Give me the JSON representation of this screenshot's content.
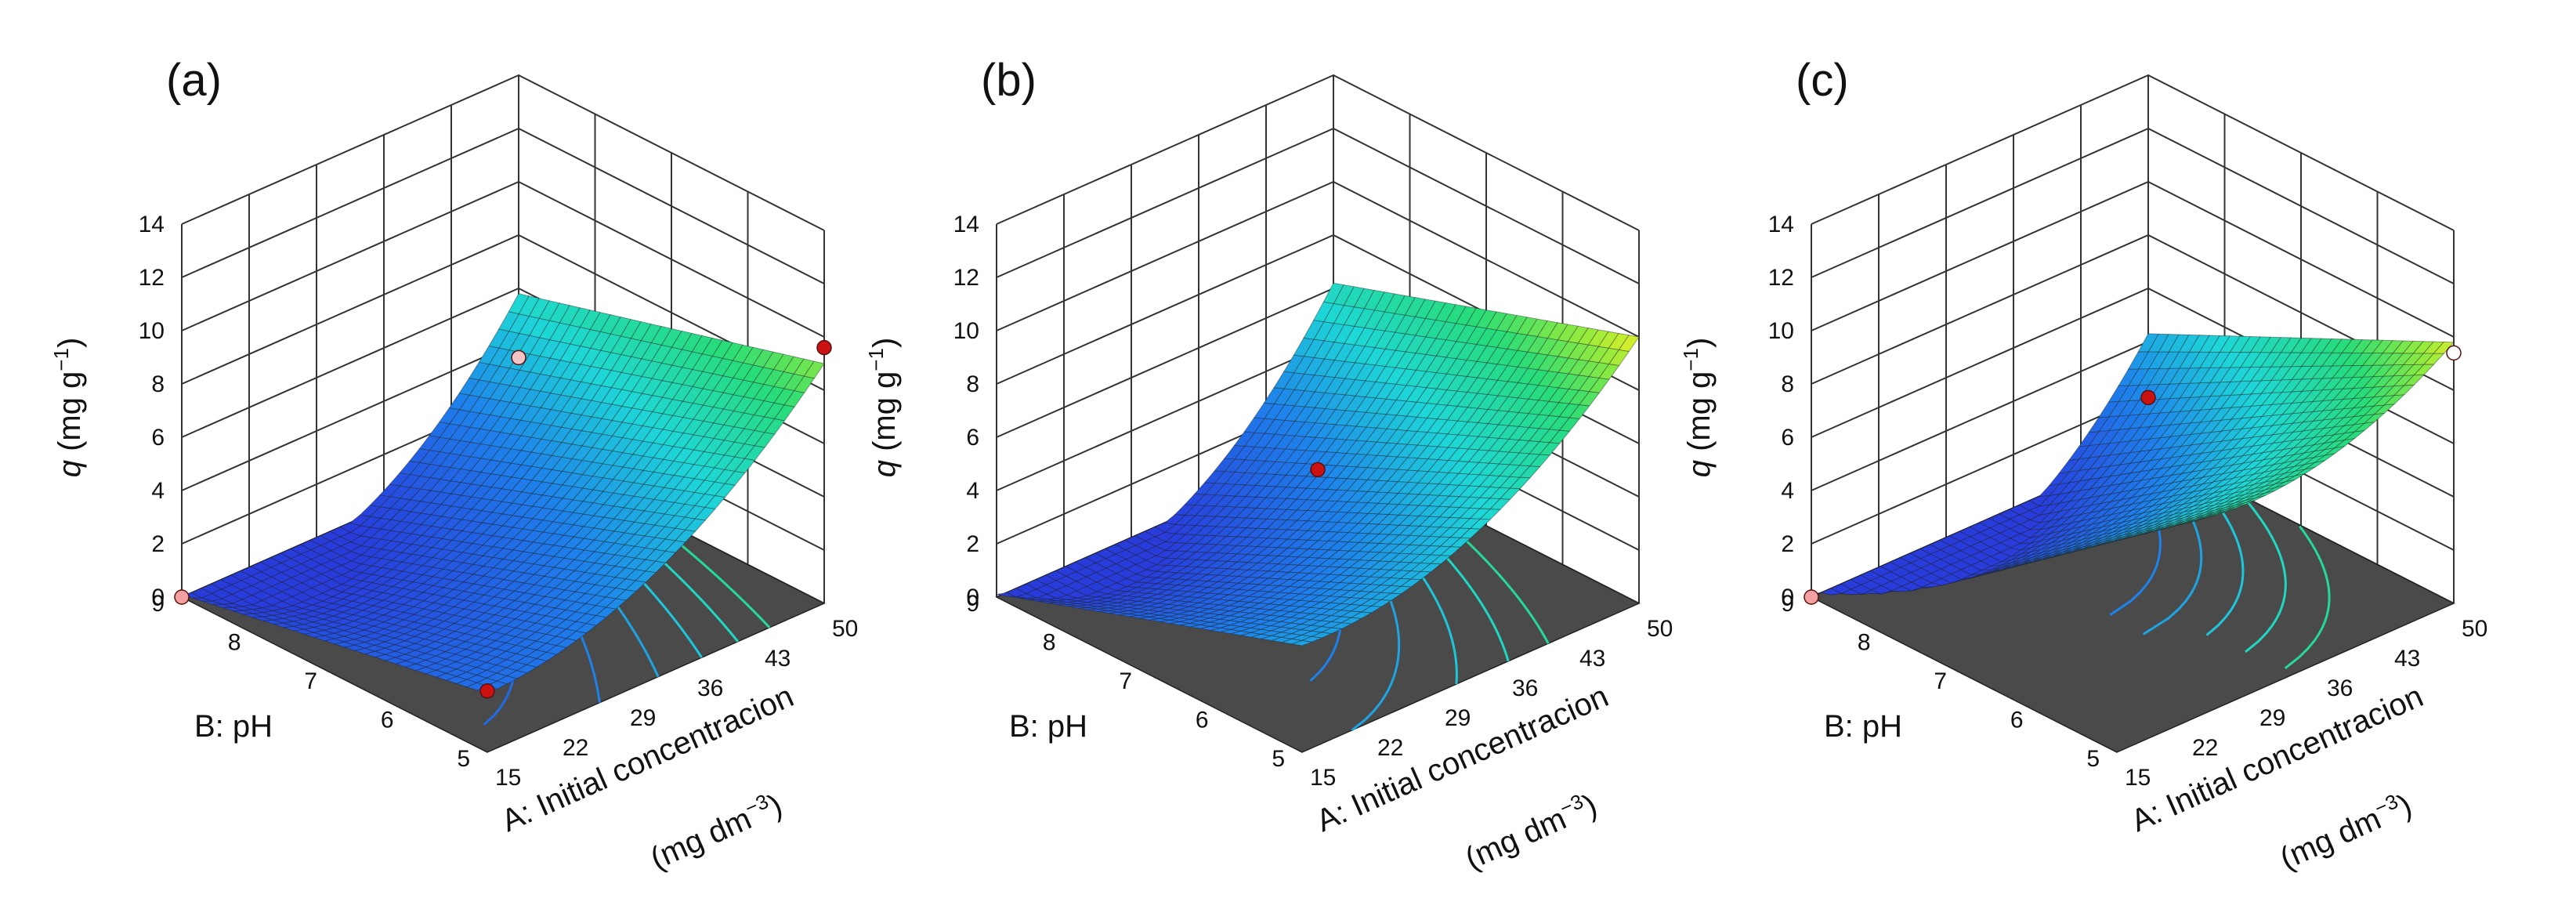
{
  "chart_data": [
    {
      "type": "surface3d",
      "panel_label": "(a)",
      "zlabel_var": "q",
      "zlabel_unit": " (mg g",
      "zlabel_exp": "−1",
      "zlabel_close": ")",
      "xlabel_line1": "A: Initial concentracion",
      "xlabel_line2_pre": "(mg dm",
      "xlabel_line2_exp": "−3",
      "xlabel_line2_post": ")",
      "ylabel": "B: pH",
      "x_ticks": [
        "15",
        "22",
        "29",
        "36",
        "43",
        "50"
      ],
      "y_ticks": [
        "5",
        "6",
        "7",
        "8",
        "9"
      ],
      "z_ticks": [
        "0",
        "2",
        "4",
        "6",
        "8",
        "10",
        "12",
        "14"
      ],
      "xlim": [
        15,
        50
      ],
      "ylim": [
        5,
        9
      ],
      "zlim": [
        0,
        14
      ],
      "corners": {
        "x15_pH5": 2.2,
        "x50_pH5": 9.0,
        "x15_pH9": 0.1,
        "x50_pH9": 5.8
      },
      "curvature": 3.0,
      "contour_levels": [
        2,
        3,
        4,
        5,
        6,
        7
      ],
      "design_points": [
        {
          "x": 15,
          "pH": 9,
          "q": 0.0,
          "color": "#f4a0a0"
        },
        {
          "x": 50,
          "pH": 5,
          "q": 9.6,
          "color": "#cc1111"
        },
        {
          "x": 15,
          "pH": 5,
          "q": 2.3,
          "color": "#cc1111"
        },
        {
          "x": 50,
          "pH": 9,
          "q": 3.4,
          "color": "#f4c4c4"
        }
      ]
    },
    {
      "type": "surface3d",
      "panel_label": "(b)",
      "zlabel_var": "q",
      "zlabel_unit": " (mg g",
      "zlabel_exp": "−1",
      "zlabel_close": ")",
      "xlabel_line1": "A: Initial concentracion",
      "xlabel_line2_pre": "(mg dm",
      "xlabel_line2_exp": "−3",
      "xlabel_line2_post": ")",
      "ylabel": "B: pH",
      "x_ticks": [
        "15",
        "22",
        "29",
        "36",
        "43",
        "50"
      ],
      "y_ticks": [
        "5",
        "6",
        "7",
        "8",
        "9"
      ],
      "z_ticks": [
        "0",
        "2",
        "4",
        "6",
        "8",
        "10",
        "12",
        "14"
      ],
      "xlim": [
        15,
        50
      ],
      "ylim": [
        5,
        9
      ],
      "zlim": [
        0,
        14
      ],
      "corners": {
        "x15_pH5": 4.0,
        "x50_pH5": 10.0,
        "x15_pH9": 0.1,
        "x50_pH9": 6.2
      },
      "curvature": 3.2,
      "contour_levels": [
        3,
        4,
        5,
        6,
        7
      ],
      "design_points": [
        {
          "x": 32.5,
          "pH": 7,
          "q": 4.9,
          "color": "#cc1111"
        }
      ]
    },
    {
      "type": "surface3d",
      "panel_label": "(c)",
      "zlabel_var": "q",
      "zlabel_unit": " (mg g",
      "zlabel_exp": "−1",
      "zlabel_close": ")",
      "xlabel_line1": "A: Initial concentracion",
      "xlabel_line2_pre": "(mg dm",
      "xlabel_line2_exp": "−3",
      "xlabel_line2_post": ")",
      "ylabel": "B: pH",
      "x_ticks": [
        "15",
        "22",
        "29",
        "36",
        "43",
        "50"
      ],
      "y_ticks": [
        "5",
        "6",
        "7",
        "8",
        "9"
      ],
      "z_ticks": [
        "0",
        "2",
        "4",
        "6",
        "8",
        "10",
        "12",
        "14"
      ],
      "xlim": [
        15,
        50
      ],
      "ylim": [
        5,
        9
      ],
      "zlim": [
        0,
        14
      ],
      "corners": {
        "x15_pH5": 8.4,
        "x50_pH5": 9.8,
        "x15_pH9": 0.1,
        "x50_pH9": 4.3
      },
      "curvature": 3.4,
      "contour_levels": [
        3,
        4,
        5,
        6,
        7
      ],
      "design_points": [
        {
          "x": 15,
          "pH": 9,
          "q": 0.0,
          "color": "#f4a0a0"
        },
        {
          "x": 50,
          "pH": 5,
          "q": 9.4,
          "color": "#ffffff"
        },
        {
          "x": 50,
          "pH": 9,
          "q": 1.9,
          "color": "#cc1111"
        }
      ]
    }
  ]
}
